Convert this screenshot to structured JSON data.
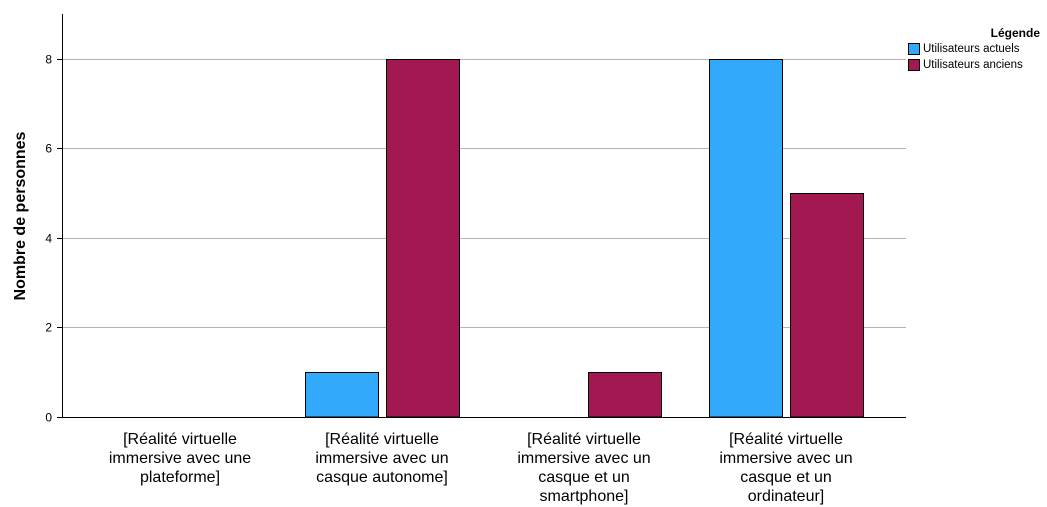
{
  "chart_data": {
    "type": "bar",
    "ylabel": "Nombre de personnes",
    "ylim": [
      0,
      9
    ],
    "yticks": [
      0,
      2,
      4,
      6,
      8
    ],
    "grid": true,
    "legend_position": "top-right",
    "legend_title": "Légende",
    "categories": [
      [
        "[Réalité virtuelle",
        "immersive avec une",
        "plateforme]"
      ],
      [
        "[Réalité virtuelle",
        "immersive avec un",
        "casque autonome]"
      ],
      [
        "[Réalité virtuelle",
        "immersive avec un",
        "casque et un",
        "smartphone]"
      ],
      [
        "[Réalité virtuelle",
        "immersive avec un",
        "casque et un",
        "ordinateur]"
      ]
    ],
    "series": [
      {
        "name": "Utilisateurs actuels",
        "color": "#33a9fb",
        "values": [
          0,
          1,
          0,
          8
        ]
      },
      {
        "name": "Utilisateurs anciens",
        "color": "#a11950",
        "values": [
          0,
          8,
          1,
          5
        ]
      }
    ]
  }
}
